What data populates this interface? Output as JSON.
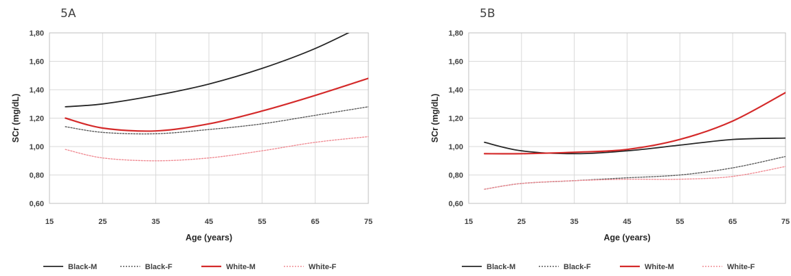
{
  "colors": {
    "black_m": "#262626",
    "black_f": "#595959",
    "white_m": "#d42a2a",
    "white_f": "#f08c94",
    "grid": "#d9d9d9",
    "text": "#404040"
  },
  "legend_entries": [
    {
      "name": "Black-M",
      "color": "#262626",
      "dash": "solid",
      "width": 1.8
    },
    {
      "name": "Black-F",
      "color": "#595959",
      "dash": "dotted",
      "width": 1.4
    },
    {
      "name": "White-M",
      "color": "#d42a2a",
      "dash": "solid",
      "width": 2.2
    },
    {
      "name": "White-F",
      "color": "#f08c94",
      "dash": "dotted",
      "width": 1.4
    }
  ],
  "chart_data": [
    {
      "type": "line",
      "title": "5A",
      "xlabel": "Age (years)",
      "ylabel": "SCr (mg/dL)",
      "xlim": [
        15,
        75
      ],
      "ylim": [
        0.6,
        1.8
      ],
      "x_ticks": [
        "15",
        "25",
        "35",
        "45",
        "55",
        "65",
        "75"
      ],
      "y_ticks": [
        "0,60",
        "0,80",
        "1,00",
        "1,20",
        "1,40",
        "1,60",
        "1,80"
      ],
      "grid": true,
      "legend_position": "bottom",
      "x": [
        18,
        25,
        35,
        45,
        55,
        65,
        75
      ],
      "series": [
        {
          "name": "Black-M",
          "values": [
            1.28,
            1.3,
            1.36,
            1.44,
            1.55,
            1.69,
            1.87
          ]
        },
        {
          "name": "Black-F",
          "values": [
            1.14,
            1.1,
            1.09,
            1.12,
            1.16,
            1.22,
            1.28
          ]
        },
        {
          "name": "White-M",
          "values": [
            1.2,
            1.13,
            1.11,
            1.16,
            1.25,
            1.36,
            1.48
          ]
        },
        {
          "name": "White-F",
          "values": [
            0.98,
            0.92,
            0.9,
            0.92,
            0.97,
            1.03,
            1.07
          ]
        }
      ]
    },
    {
      "type": "line",
      "title": "5B",
      "xlabel": "Age (years)",
      "ylabel": "SCr (mg/dL)",
      "xlim": [
        15,
        75
      ],
      "ylim": [
        0.6,
        1.8
      ],
      "x_ticks": [
        "15",
        "25",
        "35",
        "45",
        "55",
        "65",
        "75"
      ],
      "y_ticks": [
        "0,60",
        "0,80",
        "1,00",
        "1,20",
        "1,40",
        "1,60",
        "1,80"
      ],
      "grid": true,
      "legend_position": "bottom",
      "x": [
        18,
        25,
        35,
        45,
        55,
        65,
        75
      ],
      "series": [
        {
          "name": "Black-M",
          "values": [
            1.03,
            0.97,
            0.95,
            0.97,
            1.01,
            1.05,
            1.06
          ]
        },
        {
          "name": "Black-F",
          "values": [
            0.7,
            0.74,
            0.76,
            0.78,
            0.8,
            0.85,
            0.93
          ]
        },
        {
          "name": "White-M",
          "values": [
            0.95,
            0.95,
            0.96,
            0.98,
            1.05,
            1.18,
            1.38
          ]
        },
        {
          "name": "White-F",
          "values": [
            0.7,
            0.74,
            0.76,
            0.77,
            0.77,
            0.79,
            0.86
          ]
        }
      ]
    }
  ]
}
